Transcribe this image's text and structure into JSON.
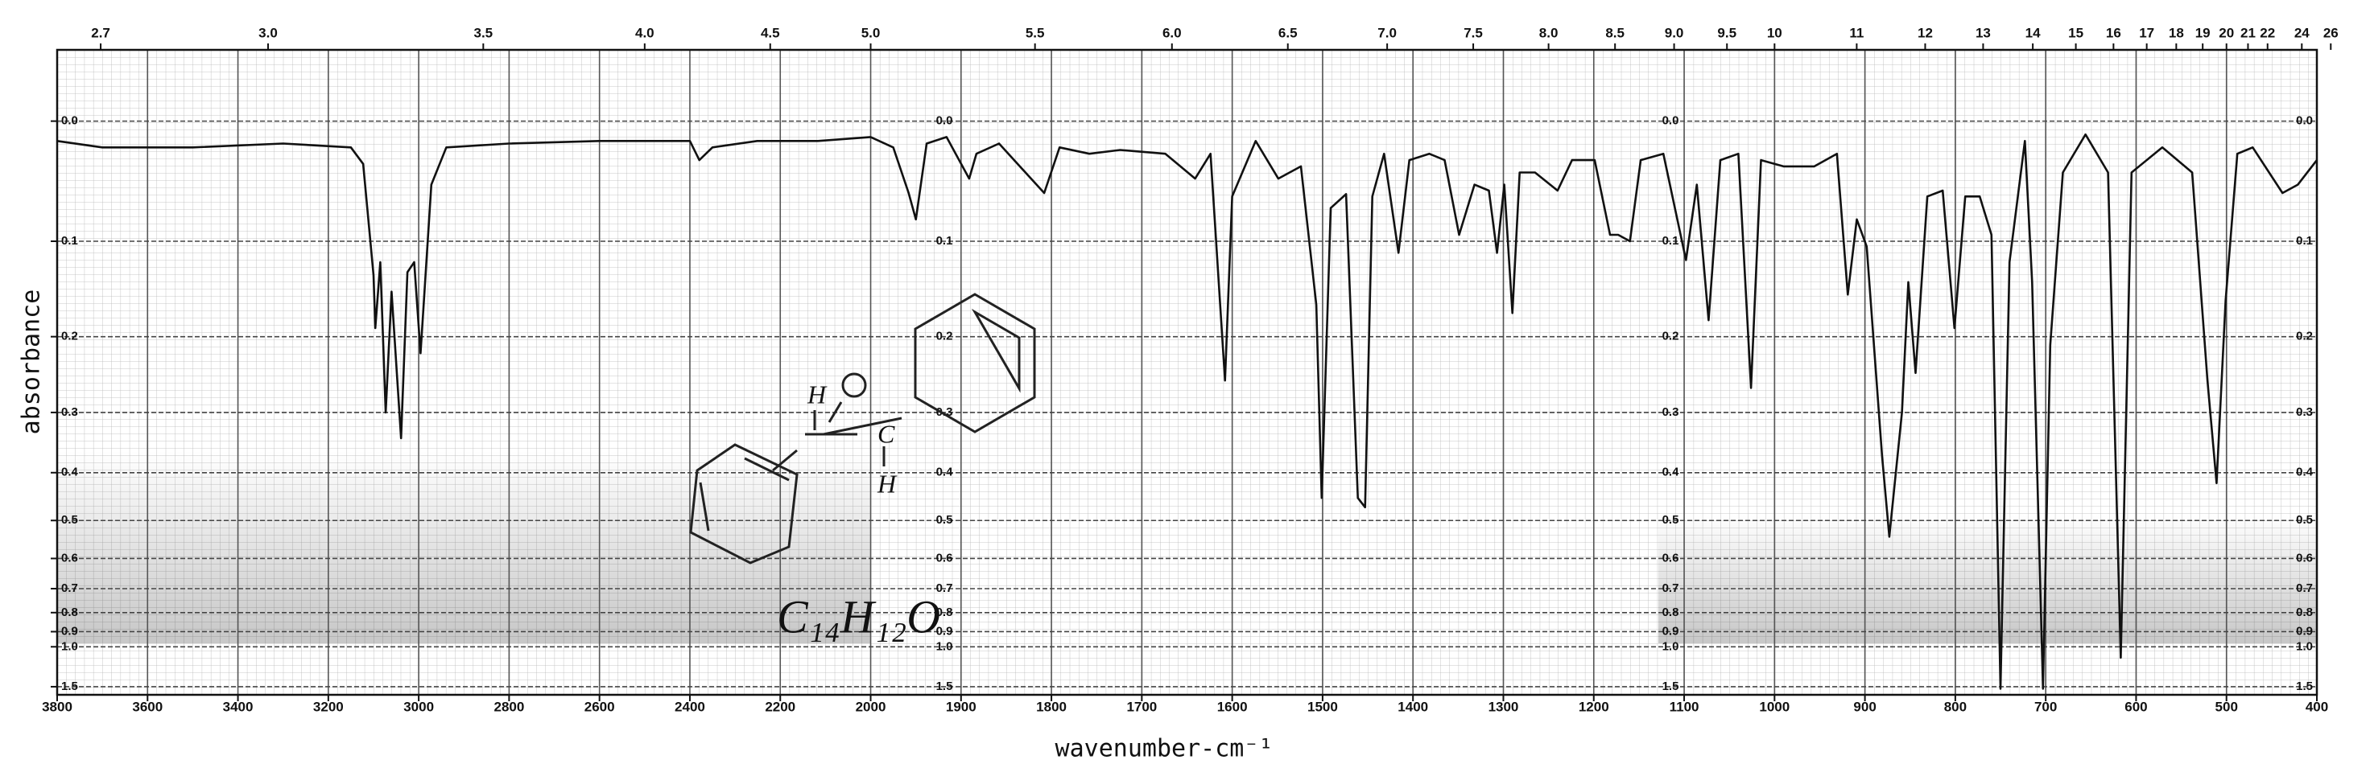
{
  "chart_data": {
    "type": "line",
    "x_label": "wavenumber-cm⁻¹",
    "y_label": "absorbance",
    "annotation": "C₁₄H₁₂O",
    "structure_labels": [
      "H",
      "C",
      "H"
    ],
    "color": "#111111",
    "grid": true,
    "y_scale": "transmittance",
    "xlim": [
      3800,
      400
    ],
    "ylim": [
      -0.05,
      1.75
    ],
    "xticks": [
      3800,
      3600,
      3400,
      3200,
      3000,
      2800,
      2600,
      2400,
      2200,
      2000,
      1900,
      1800,
      1700,
      1600,
      1500,
      1400,
      1300,
      1200,
      1100,
      1000,
      900,
      800,
      700,
      600,
      500,
      400
    ],
    "top_xticks": [
      2.7,
      {
        "value": 3,
        "label": "3.0"
      },
      3.5,
      {
        "value": 4,
        "label": "4.0"
      },
      4.5,
      {
        "value": 5,
        "label": "5.0"
      },
      5.5,
      {
        "value": 6,
        "label": "6.0"
      },
      6.5,
      {
        "value": 7,
        "label": "7.0"
      },
      7.5,
      {
        "value": 8,
        "label": "8.0"
      },
      8.5,
      {
        "value": 9,
        "label": "9.0"
      },
      9.5,
      10,
      11,
      12,
      13,
      14,
      15,
      16,
      17,
      18,
      19,
      20,
      21,
      22,
      24,
      26
    ],
    "yticks": [
      {
        "value": 0,
        "label": "0.0"
      },
      0.1,
      0.2,
      0.3,
      0.4,
      0.5,
      0.6,
      0.7,
      0.8,
      0.9,
      {
        "value": 1,
        "label": "1.0"
      },
      1.5
    ],
    "x": [
      3800,
      3700,
      3500,
      3300,
      3150,
      3123,
      3100,
      3096,
      3085,
      3073,
      3060,
      3039,
      3025,
      3010,
      2996,
      2980,
      2972,
      2939,
      2800,
      2600,
      2400,
      2379,
      2350,
      2251,
      2117,
      2000,
      1975,
      1958,
      1950,
      1938,
      1916,
      1891,
      1883,
      1858,
      1808,
      1791,
      1758,
      1724,
      1674,
      1641,
      1624,
      1608,
      1600,
      1574,
      1549,
      1524,
      1507,
      1501,
      1491,
      1474,
      1461,
      1453,
      1445,
      1432,
      1416,
      1404,
      1382,
      1365,
      1349,
      1332,
      1316,
      1307,
      1299,
      1290,
      1282,
      1265,
      1240,
      1224,
      1199,
      1182,
      1173,
      1160,
      1148,
      1123,
      1098,
      1086,
      1073,
      1060,
      1040,
      1026,
      1015,
      990,
      956,
      931,
      919,
      909,
      898,
      881,
      873,
      859,
      852,
      844,
      831,
      814,
      801,
      789,
      773,
      760,
      750,
      740,
      723,
      715,
      703,
      695,
      681,
      656,
      631,
      617,
      605,
      571,
      538,
      521,
      511,
      501,
      488,
      471,
      438,
      421,
      400
    ],
    "values": [
      0.015,
      0.02,
      0.02,
      0.017,
      0.02,
      0.033,
      0.133,
      0.19,
      0.12,
      0.3,
      0.15,
      0.34,
      0.13,
      0.12,
      0.22,
      0.1,
      0.05,
      0.02,
      0.017,
      0.015,
      0.015,
      0.03,
      0.02,
      0.015,
      0.015,
      0.012,
      0.02,
      0.057,
      0.08,
      0.017,
      0.012,
      0.045,
      0.025,
      0.017,
      0.057,
      0.02,
      0.025,
      0.022,
      0.025,
      0.045,
      0.025,
      0.255,
      0.06,
      0.015,
      0.045,
      0.035,
      0.164,
      0.45,
      0.07,
      0.058,
      0.45,
      0.47,
      0.06,
      0.025,
      0.111,
      0.03,
      0.025,
      0.03,
      0.094,
      0.05,
      0.055,
      0.111,
      0.05,
      0.173,
      0.04,
      0.04,
      0.055,
      0.03,
      0.03,
      0.094,
      0.094,
      0.1,
      0.03,
      0.025,
      0.118,
      0.05,
      0.181,
      0.03,
      0.025,
      0.265,
      0.03,
      0.035,
      0.035,
      0.025,
      0.153,
      0.08,
      0.105,
      0.37,
      0.54,
      0.3,
      0.14,
      0.245,
      0.06,
      0.055,
      0.19,
      0.06,
      0.06,
      0.094,
      1.55,
      0.12,
      0.015,
      0.14,
      1.55,
      0.21,
      0.04,
      0.01,
      0.04,
      1.09,
      0.04,
      0.02,
      0.04,
      0.255,
      0.42,
      0.16,
      0.025,
      0.02,
      0.057,
      0.05,
      0.03
    ]
  }
}
